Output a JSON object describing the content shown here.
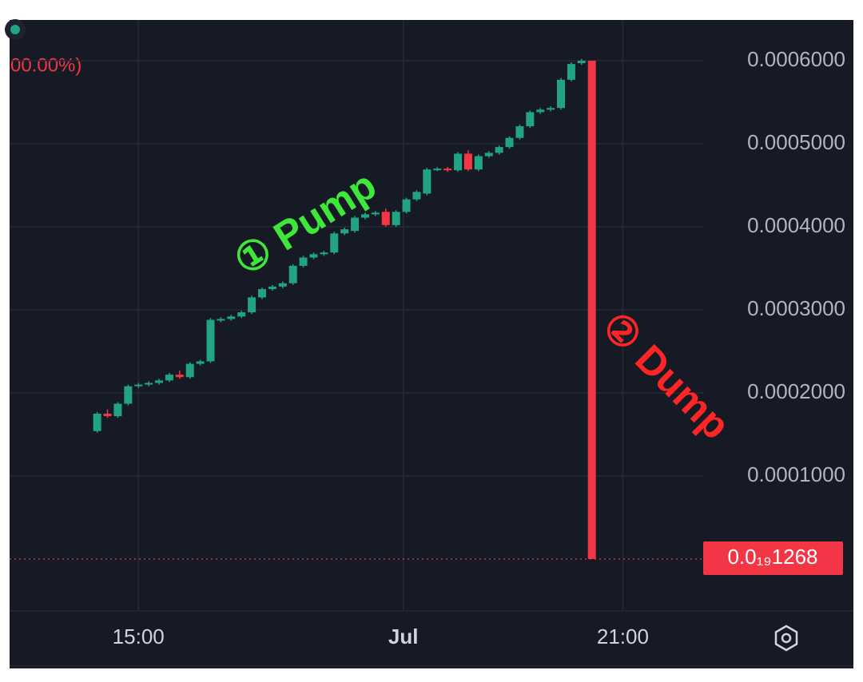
{
  "chart_data": {
    "type": "candlestick",
    "header_change": "00.00%)",
    "annotations": [
      {
        "text": "① Pump",
        "color": "#3ee83a"
      },
      {
        "text": "② Dump",
        "color": "#ff2525"
      }
    ],
    "up_color": "#22a383",
    "down_color": "#f23645",
    "grid": true,
    "x": [
      0,
      1,
      2,
      3,
      4,
      5,
      6,
      7,
      8,
      9,
      10,
      11,
      12,
      13,
      14,
      15,
      16,
      17,
      18,
      19,
      20,
      21,
      22,
      23,
      24,
      25,
      26,
      27,
      28,
      29,
      30,
      31,
      32,
      33,
      34,
      35,
      36,
      37,
      38,
      39,
      40,
      41,
      42,
      43,
      44,
      45,
      46,
      47,
      48
    ],
    "xlim": [
      -8.5,
      58.8
    ],
    "xticks": [
      {
        "value": 4,
        "label": "15:00"
      },
      {
        "value": 29.7,
        "label": "Jul"
      },
      {
        "value": 51,
        "label": "21:00"
      }
    ],
    "ylim": [
      -6.25e-05,
      0.000649
    ],
    "yticks": [
      {
        "value": 0.0001,
        "label": "0.0001000"
      },
      {
        "value": 0.0002,
        "label": "0.0002000"
      },
      {
        "value": 0.0003,
        "label": "0.0003000"
      },
      {
        "value": 0.0004,
        "label": "0.0004000"
      },
      {
        "value": 0.0005,
        "label": "0.0005000"
      },
      {
        "value": 0.0006,
        "label": "0.0006000"
      }
    ],
    "last_price": {
      "value": 1.268e-20,
      "label": "0.0₁₉1268"
    },
    "open": [
      0.000154,
      0.000175,
      0.000172,
      0.000187,
      0.000208,
      0.00021,
      0.000212,
      0.000215,
      0.000222,
      0.000219,
      0.000235,
      0.000238,
      0.000287,
      0.000289,
      0.000292,
      0.000297,
      0.000315,
      0.000325,
      0.000328,
      0.000332,
      0.000353,
      0.000363,
      0.000367,
      0.000369,
      0.000392,
      0.000395,
      0.000411,
      0.000415,
      0.000418,
      0.000402,
      0.000418,
      0.000433,
      0.00044,
      0.000469,
      0.00047,
      0.000468,
      0.000488,
      0.000469,
      0.000485,
      0.000489,
      0.000496,
      0.000507,
      0.000521,
      0.000538,
      0.000541,
      0.000543,
      0.000577,
      0.000597,
      0.0006
    ],
    "high": [
      0.000177,
      0.00018,
      0.000189,
      0.00021,
      0.000212,
      0.000214,
      0.000217,
      0.000224,
      0.000227,
      0.000237,
      0.00024,
      0.00029,
      0.000291,
      0.000294,
      0.000299,
      0.000317,
      0.000327,
      0.00033,
      0.000334,
      0.000355,
      0.000365,
      0.000369,
      0.000371,
      0.000394,
      0.000399,
      0.000413,
      0.000417,
      0.000419,
      0.000422,
      0.00042,
      0.000435,
      0.000444,
      0.000471,
      0.000472,
      0.000472,
      0.00049,
      0.000492,
      0.000487,
      0.000491,
      0.000498,
      0.000509,
      0.000523,
      0.00054,
      0.000543,
      0.000545,
      0.000579,
      0.000598,
      0.000602,
      0.0006
    ],
    "low": [
      0.000152,
      0.00017,
      0.00017,
      0.000185,
      0.000206,
      0.000208,
      0.00021,
      0.000213,
      0.000217,
      0.000217,
      0.000233,
      0.000236,
      0.000285,
      0.000287,
      0.00029,
      0.000295,
      0.000313,
      0.000323,
      0.000326,
      0.00033,
      0.000351,
      0.000361,
      0.000365,
      0.000367,
      0.00039,
      0.000393,
      0.000409,
      0.000413,
      0.0004,
      0.0004,
      0.000416,
      0.000431,
      0.000438,
      0.000467,
      0.000466,
      0.000466,
      0.000467,
      0.000467,
      0.000483,
      0.000487,
      0.000494,
      0.000505,
      0.000519,
      0.000536,
      0.000539,
      0.000541,
      0.000575,
      0.000595,
      0
    ],
    "close": [
      0.000175,
      0.000172,
      0.000187,
      0.000208,
      0.00021,
      0.000212,
      0.000215,
      0.000222,
      0.000219,
      0.000235,
      0.000238,
      0.000288,
      0.000289,
      0.000292,
      0.000297,
      0.000315,
      0.000325,
      0.000328,
      0.000332,
      0.000353,
      0.000363,
      0.000367,
      0.000369,
      0.000392,
      0.000397,
      0.000411,
      0.000415,
      0.000417,
      0.000402,
      0.000418,
      0.000433,
      0.000442,
      0.000469,
      0.00047,
      0.000468,
      0.000488,
      0.000469,
      0.000485,
      0.000489,
      0.000496,
      0.000507,
      0.000521,
      0.000538,
      0.000541,
      0.000543,
      0.000577,
      0.000596,
      0.0006,
      1.268e-20
    ]
  }
}
